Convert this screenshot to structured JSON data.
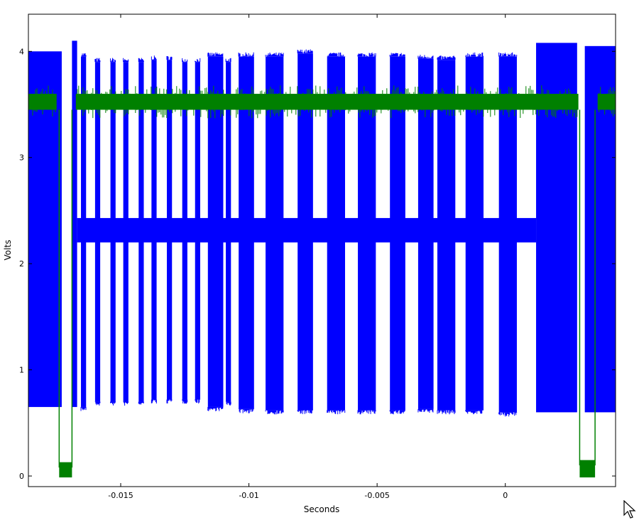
{
  "chart_data": {
    "type": "line",
    "title": "",
    "xlabel": "Seconds",
    "ylabel": "Volts",
    "xlim": [
      -0.0186,
      0.0043
    ],
    "ylim": [
      -0.1,
      4.35
    ],
    "x_ticks": [
      {
        "value": -0.015,
        "label": "-0.015"
      },
      {
        "value": -0.01,
        "label": "-0.01"
      },
      {
        "value": -0.005,
        "label": "-0.005"
      },
      {
        "value": 0,
        "label": "0"
      }
    ],
    "y_ticks": [
      {
        "value": 0,
        "label": "0"
      },
      {
        "value": 1,
        "label": "1"
      },
      {
        "value": 2,
        "label": "2"
      },
      {
        "value": 3,
        "label": "3"
      },
      {
        "value": 4,
        "label": "4"
      }
    ],
    "grid": false,
    "legend": "none",
    "series": [
      {
        "color": "#0000ff",
        "description_free": true,
        "continuous_blocks": [
          {
            "x0": -0.0186,
            "x1": -0.0173,
            "low": 0.65,
            "high": 4.0
          },
          {
            "x0": -0.0169,
            "x1": -0.0167,
            "low": 0.65,
            "high": 4.1
          },
          {
            "x0": 0.0012,
            "x1": 0.0028,
            "low": 0.6,
            "high": 4.08
          },
          {
            "x0": 0.0031,
            "x1": 0.0043,
            "low": 0.6,
            "high": 4.05
          }
        ],
        "pulses": [
          {
            "x": -0.01645,
            "w": 0.0002,
            "low": 0.65,
            "high": 3.95
          },
          {
            "x": -0.0159,
            "w": 0.0002,
            "low": 0.7,
            "high": 3.9
          },
          {
            "x": -0.0153,
            "w": 0.0002,
            "low": 0.7,
            "high": 3.9
          },
          {
            "x": -0.0148,
            "w": 0.0002,
            "low": 0.7,
            "high": 3.9
          },
          {
            "x": -0.0142,
            "w": 0.0002,
            "low": 0.7,
            "high": 3.9
          },
          {
            "x": -0.0137,
            "w": 0.0002,
            "low": 0.72,
            "high": 3.92
          },
          {
            "x": -0.0131,
            "w": 0.0002,
            "low": 0.72,
            "high": 3.92
          },
          {
            "x": -0.0125,
            "w": 0.0002,
            "low": 0.72,
            "high": 3.9
          },
          {
            "x": -0.012,
            "w": 0.0002,
            "low": 0.72,
            "high": 3.9
          },
          {
            "x": -0.0113,
            "w": 0.0006,
            "low": 0.65,
            "high": 3.95
          },
          {
            "x": -0.0108,
            "w": 0.0002,
            "low": 0.7,
            "high": 3.9
          },
          {
            "x": -0.0101,
            "w": 0.0006,
            "low": 0.63,
            "high": 3.95
          },
          {
            "x": -0.009,
            "w": 0.0007,
            "low": 0.62,
            "high": 3.95
          },
          {
            "x": -0.0078,
            "w": 0.0006,
            "low": 0.62,
            "high": 3.98
          },
          {
            "x": -0.0066,
            "w": 0.0007,
            "low": 0.62,
            "high": 3.95
          },
          {
            "x": -0.0054,
            "w": 0.0007,
            "low": 0.62,
            "high": 3.95
          },
          {
            "x": -0.0042,
            "w": 0.0006,
            "low": 0.62,
            "high": 3.95
          },
          {
            "x": -0.0031,
            "w": 0.0006,
            "low": 0.63,
            "high": 3.93
          },
          {
            "x": -0.0023,
            "w": 0.0007,
            "low": 0.62,
            "high": 3.92
          },
          {
            "x": -0.0012,
            "w": 0.0007,
            "low": 0.62,
            "high": 3.95
          },
          {
            "x": 0.0001,
            "w": 0.0007,
            "low": 0.6,
            "high": 3.95
          }
        ],
        "mid_band": {
          "x0": -0.0167,
          "x1": 0.0012,
          "low": 2.2,
          "high": 2.43
        }
      },
      {
        "color": "#008000",
        "description_free": true,
        "high_level": {
          "low": 3.45,
          "high": 3.6
        },
        "high_segments": [
          {
            "x0": -0.0186,
            "x1": -0.0175
          },
          {
            "x0": -0.01675,
            "x1": 0.00285
          },
          {
            "x0": 0.0036,
            "x1": 0.0043
          }
        ],
        "low_segments": [
          {
            "x0": -0.0174,
            "x1": -0.0169,
            "value": 0.08
          },
          {
            "x0": 0.0029,
            "x1": 0.0035,
            "value": 0.1
          }
        ]
      }
    ]
  }
}
